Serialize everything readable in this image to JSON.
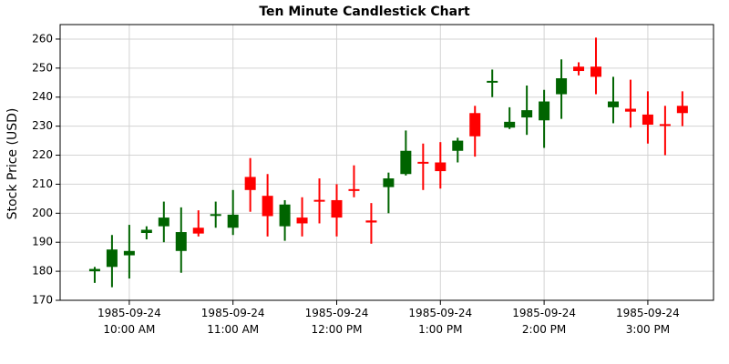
{
  "chart_data": {
    "type": "candlestick",
    "title": "Ten Minute Candlestick Chart",
    "y_label": "Stock Price (USD)",
    "x": [
      "1985-09-24 09:40",
      "1985-09-24 09:50",
      "1985-09-24 10:00",
      "1985-09-24 10:10",
      "1985-09-24 10:20",
      "1985-09-24 10:30",
      "1985-09-24 10:40",
      "1985-09-24 10:50",
      "1985-09-24 11:00",
      "1985-09-24 11:10",
      "1985-09-24 11:20",
      "1985-09-24 11:30",
      "1985-09-24 11:40",
      "1985-09-24 11:50",
      "1985-09-24 12:00",
      "1985-09-24 12:10",
      "1985-09-24 12:20",
      "1985-09-24 12:30",
      "1985-09-24 12:40",
      "1985-09-24 12:50",
      "1985-09-24 13:00",
      "1985-09-24 13:10",
      "1985-09-24 13:20",
      "1985-09-24 13:30",
      "1985-09-24 13:40",
      "1985-09-24 13:50",
      "1985-09-24 14:00",
      "1985-09-24 14:10",
      "1985-09-24 14:20",
      "1985-09-24 14:30",
      "1985-09-24 14:40",
      "1985-09-24 14:50",
      "1985-09-24 15:00",
      "1985-09-24 15:10",
      "1985-09-24 15:20"
    ],
    "open": [
      180,
      181.5,
      185.5,
      193.2,
      195.5,
      187,
      195,
      199.5,
      195,
      212.5,
      206,
      195.5,
      198.5,
      204.6,
      204.5,
      208.3,
      197.5,
      209,
      213.5,
      217.7,
      217.5,
      221.5,
      234.5,
      245.3,
      229.5,
      233,
      232,
      241,
      250.5,
      250.5,
      236.5,
      236,
      234,
      230.7,
      237
    ],
    "high": [
      181.5,
      192.5,
      196,
      195.5,
      204,
      202,
      201,
      204,
      208,
      219,
      213.5,
      204.5,
      205.5,
      212,
      210,
      216.5,
      203.5,
      214,
      228.5,
      224,
      224.5,
      226,
      237,
      249.5,
      236.5,
      244,
      242.5,
      253,
      252,
      260.5,
      247,
      246,
      242,
      237,
      242
    ],
    "low": [
      176,
      174.5,
      177.5,
      191,
      190,
      179.5,
      192,
      195,
      192.5,
      200.5,
      192,
      190.5,
      192,
      196.5,
      192,
      205.5,
      189.5,
      200,
      213,
      208,
      208.5,
      217.5,
      219.5,
      240,
      229,
      227,
      222.5,
      232.5,
      247.5,
      241,
      231,
      229.5,
      224,
      220,
      230
    ],
    "close": [
      180.8,
      187.5,
      187,
      194.3,
      198.5,
      193.5,
      193,
      199.7,
      199.5,
      208,
      199,
      203,
      196.5,
      204.3,
      198.5,
      208,
      196.8,
      212,
      221.5,
      217.4,
      214.5,
      225,
      226.5,
      245.6,
      231.5,
      235.5,
      238.5,
      246.5,
      249,
      247,
      238.5,
      235,
      230.5,
      230.4,
      234.5
    ],
    "up_color": "#006400",
    "down_color": "#ff0000",
    "xlim": [
      "1985-09-24 09:20",
      "1985-09-24 15:38"
    ],
    "xticks": [
      {
        "value": "1985-09-24 10:00",
        "label": "1985-09-24\n10:00 AM"
      },
      {
        "value": "1985-09-24 11:00",
        "label": "1985-09-24\n11:00 AM"
      },
      {
        "value": "1985-09-24 12:00",
        "label": "1985-09-24\n12:00 PM"
      },
      {
        "value": "1985-09-24 13:00",
        "label": "1985-09-24\n1:00 PM"
      },
      {
        "value": "1985-09-24 14:00",
        "label": "1985-09-24\n2:00 PM"
      },
      {
        "value": "1985-09-24 15:00",
        "label": "1985-09-24\n3:00 PM"
      }
    ],
    "ylim": [
      170,
      265
    ],
    "yticks": [
      170,
      180,
      190,
      200,
      210,
      220,
      230,
      240,
      250,
      260
    ],
    "grid": true
  }
}
